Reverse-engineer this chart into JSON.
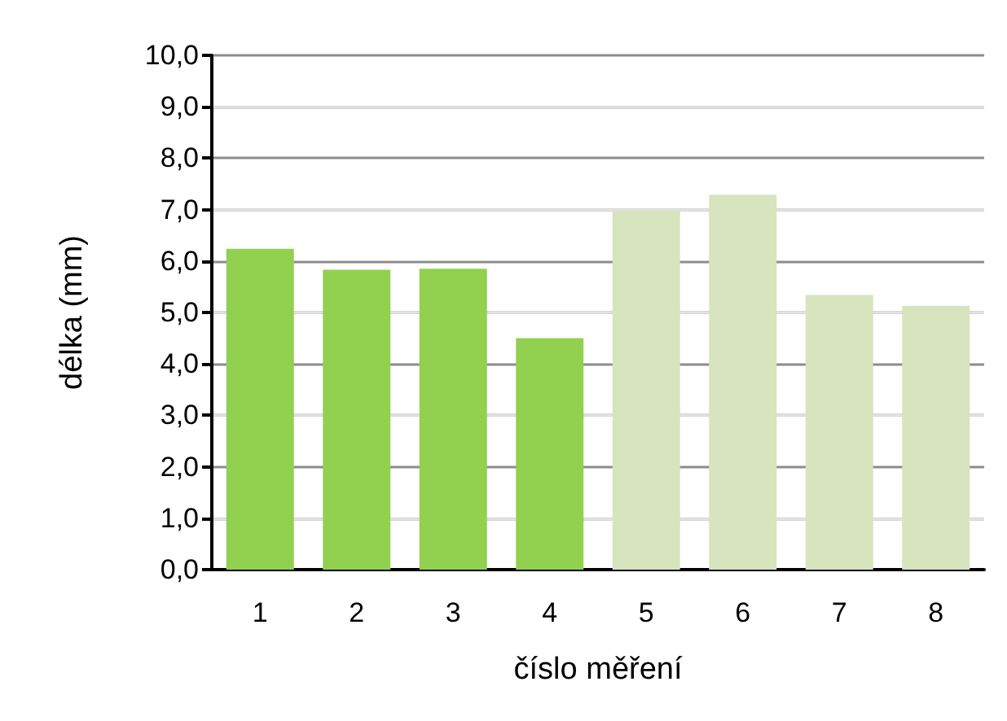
{
  "chart_data": {
    "type": "bar",
    "xlabel": "číslo měření",
    "ylabel": "délka (mm)",
    "categories": [
      "1",
      "2",
      "3",
      "4",
      "5",
      "6",
      "7",
      "8"
    ],
    "values": [
      6.24,
      5.83,
      5.85,
      4.5,
      6.98,
      7.29,
      5.34,
      5.13
    ],
    "colors": [
      "#92d050",
      "#92d050",
      "#92d050",
      "#92d050",
      "#d7e4bd",
      "#d7e4bd",
      "#d7e4bd",
      "#d7e4bd"
    ],
    "ylim": [
      0,
      10
    ],
    "yticks": [
      {
        "value": 0,
        "label": "0,0"
      },
      {
        "value": 1,
        "label": "1,0"
      },
      {
        "value": 2,
        "label": "2,0"
      },
      {
        "value": 3,
        "label": "3,0"
      },
      {
        "value": 4,
        "label": "4,0"
      },
      {
        "value": 5,
        "label": "5,0"
      },
      {
        "value": 6,
        "label": "6,0"
      },
      {
        "value": 7,
        "label": "7,0"
      },
      {
        "value": 8,
        "label": "8,0"
      },
      {
        "value": 9,
        "label": "9,0"
      },
      {
        "value": 10,
        "label": "10,0"
      }
    ],
    "grid": "y"
  }
}
